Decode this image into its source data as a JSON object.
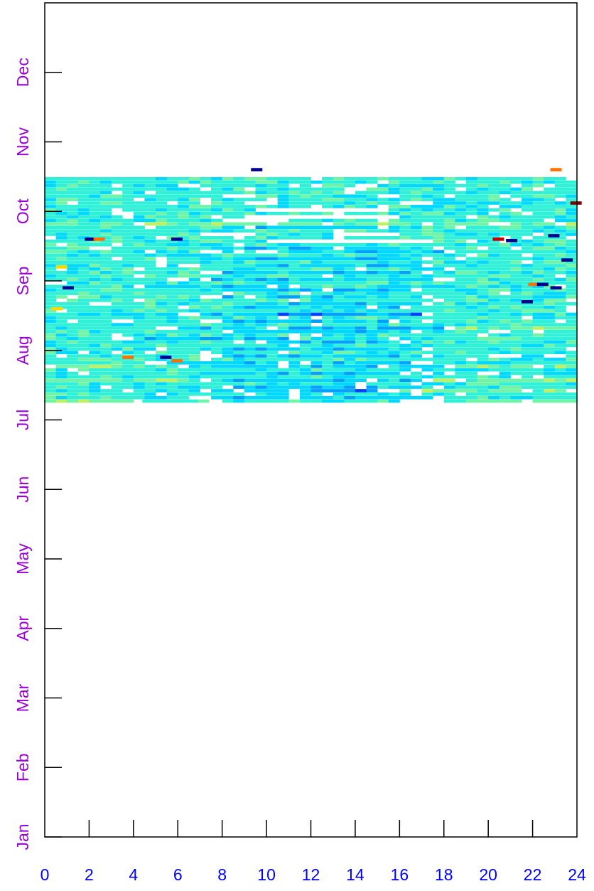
{
  "chart_data": {
    "type": "heatmap",
    "title": "",
    "xlabel": "",
    "ylabel": "",
    "xlim": [
      0,
      24
    ],
    "ylim": [
      0,
      12
    ],
    "grid": false,
    "legend": "none",
    "x_ticks": [
      "0",
      "2",
      "4",
      "6",
      "8",
      "10",
      "12",
      "14",
      "16",
      "18",
      "20",
      "22",
      "24"
    ],
    "y_ticks": [
      "Jan",
      "Feb",
      "Mar",
      "Apr",
      "May",
      "Jun",
      "Jul",
      "Aug",
      "Sep",
      "Oct",
      "Nov",
      "Dec"
    ],
    "x_tick_color": "#0000ff",
    "y_tick_color": "#9a00d6",
    "colormap": [
      "#00008f",
      "#0040ff",
      "#00a0ff",
      "#00d8ff",
      "#30f0d8",
      "#70f4a8",
      "#c0f060",
      "#ffd800",
      "#ff7000",
      "#c00000",
      "#7f0000"
    ],
    "x_resolution_hours": 0.5,
    "data_start_month": 6.25,
    "data_end_month": 9.5,
    "typical_level": 4,
    "rows": [
      {
        "month": 6.27,
        "segments": [
          [
            0,
            3.6,
            5
          ],
          [
            4.4,
            7.2,
            4
          ],
          [
            8,
            16,
            4
          ],
          [
            18,
            24,
            5
          ]
        ]
      },
      {
        "month": 6.32,
        "segments": [
          [
            0,
            6.5,
            4
          ],
          [
            7.5,
            17.5,
            3
          ],
          [
            18,
            24,
            4
          ]
        ]
      },
      {
        "month": 6.37,
        "segments": [
          [
            0,
            5,
            4
          ],
          [
            5.5,
            9,
            4
          ],
          [
            9.5,
            16.5,
            3
          ],
          [
            17,
            24,
            4
          ]
        ]
      },
      {
        "month": 6.42,
        "segments": [
          [
            0,
            7,
            4
          ],
          [
            7.5,
            11,
            3
          ],
          [
            11.5,
            15,
            2
          ],
          [
            16,
            24,
            5
          ]
        ]
      },
      {
        "month": 6.47,
        "segments": [
          [
            0,
            8,
            4
          ],
          [
            8.5,
            17.5,
            3
          ],
          [
            18,
            24,
            4
          ]
        ]
      },
      {
        "month": 6.52,
        "segments": [
          [
            0,
            24,
            4
          ]
        ]
      },
      {
        "month": 6.57,
        "segments": [
          [
            0,
            7,
            5
          ],
          [
            7.5,
            17,
            3
          ],
          [
            17.5,
            24,
            5
          ]
        ]
      },
      {
        "month": 6.62,
        "segments": [
          [
            0,
            24,
            4
          ]
        ]
      },
      {
        "month": 6.67,
        "segments": [
          [
            0,
            10,
            4
          ],
          [
            10,
            16,
            3
          ],
          [
            16.5,
            24,
            4
          ]
        ]
      },
      {
        "month": 6.72,
        "segments": [
          [
            0,
            24,
            4
          ]
        ]
      },
      {
        "month": 6.77,
        "segments": [
          [
            0,
            6,
            5
          ],
          [
            6.5,
            18,
            3
          ],
          [
            18.5,
            24,
            5
          ]
        ]
      },
      {
        "month": 6.82,
        "segments": [
          [
            0,
            4.5,
            4
          ],
          [
            5.5,
            16.5,
            3
          ],
          [
            17.5,
            24,
            4
          ]
        ]
      },
      {
        "month": 6.87,
        "segments": [
          [
            0,
            24,
            4
          ]
        ]
      },
      {
        "month": 6.92,
        "segments": [
          [
            0,
            7,
            4
          ],
          [
            8,
            17,
            3
          ],
          [
            17.5,
            24,
            4
          ]
        ]
      },
      {
        "month": 6.97,
        "segments": [
          [
            0,
            24,
            4
          ]
        ]
      },
      {
        "month": 7.02,
        "segments": [
          [
            0,
            5,
            4
          ],
          [
            5.5,
            8,
            4
          ],
          [
            8,
            17,
            3
          ],
          [
            17.5,
            24,
            4
          ]
        ]
      },
      {
        "month": 7.07,
        "segments": [
          [
            0,
            24,
            4
          ]
        ]
      },
      {
        "month": 7.12,
        "segments": [
          [
            0,
            9,
            4
          ],
          [
            9,
            16,
            3
          ],
          [
            16.5,
            24,
            4
          ]
        ]
      },
      {
        "month": 7.17,
        "segments": [
          [
            0,
            3,
            4
          ],
          [
            4,
            11,
            3
          ],
          [
            11.5,
            24,
            4
          ]
        ]
      },
      {
        "month": 7.22,
        "segments": [
          [
            0,
            24,
            4
          ]
        ]
      },
      {
        "month": 7.27,
        "segments": [
          [
            0,
            8,
            4
          ],
          [
            8,
            17,
            3
          ],
          [
            17,
            24,
            4
          ]
        ]
      },
      {
        "month": 7.32,
        "segments": [
          [
            0,
            5,
            4
          ],
          [
            6,
            18,
            3
          ],
          [
            18.5,
            24,
            5
          ]
        ]
      },
      {
        "month": 7.37,
        "segments": [
          [
            0,
            24,
            4
          ]
        ]
      },
      {
        "month": 7.42,
        "segments": [
          [
            0,
            7,
            4
          ],
          [
            8,
            17,
            3
          ],
          [
            17.5,
            24,
            4
          ]
        ]
      },
      {
        "month": 7.47,
        "segments": [
          [
            0,
            24,
            4
          ]
        ]
      },
      {
        "month": 7.52,
        "segments": [
          [
            0,
            6,
            4
          ],
          [
            7,
            10,
            3
          ],
          [
            10,
            17,
            2
          ],
          [
            17.5,
            24,
            4
          ]
        ]
      },
      {
        "month": 7.57,
        "segments": [
          [
            0,
            24,
            4
          ]
        ]
      },
      {
        "month": 7.62,
        "segments": [
          [
            0,
            8,
            4
          ],
          [
            8,
            16,
            3
          ],
          [
            16.5,
            24,
            4
          ]
        ]
      },
      {
        "month": 7.67,
        "segments": [
          [
            0,
            2,
            4
          ],
          [
            3,
            9,
            4
          ],
          [
            9,
            17,
            3
          ],
          [
            17.5,
            24,
            4
          ]
        ]
      },
      {
        "month": 7.72,
        "segments": [
          [
            0,
            24,
            4
          ]
        ]
      },
      {
        "month": 7.77,
        "segments": [
          [
            0,
            7,
            4
          ],
          [
            8,
            17,
            3
          ],
          [
            17.5,
            24,
            4
          ]
        ]
      },
      {
        "month": 7.82,
        "segments": [
          [
            0,
            24,
            4
          ]
        ]
      },
      {
        "month": 7.87,
        "segments": [
          [
            0,
            8,
            4
          ],
          [
            8,
            16.5,
            3
          ],
          [
            17,
            24,
            4
          ]
        ]
      },
      {
        "month": 7.92,
        "segments": [
          [
            0,
            4,
            4
          ],
          [
            4.5,
            10,
            3
          ],
          [
            10.5,
            24,
            4
          ]
        ]
      },
      {
        "month": 7.97,
        "segments": [
          [
            0,
            24,
            4
          ]
        ]
      },
      {
        "month": 8.02,
        "segments": [
          [
            0,
            6,
            4
          ],
          [
            6.5,
            18,
            3
          ],
          [
            18.5,
            24,
            4
          ]
        ]
      },
      {
        "month": 8.07,
        "segments": [
          [
            0,
            24,
            4
          ]
        ]
      },
      {
        "month": 8.12,
        "segments": [
          [
            0,
            7,
            4
          ],
          [
            8,
            17,
            3
          ],
          [
            17.5,
            24,
            4
          ]
        ]
      },
      {
        "month": 8.17,
        "segments": [
          [
            0,
            24,
            4
          ]
        ]
      },
      {
        "month": 8.22,
        "segments": [
          [
            0,
            5,
            4
          ],
          [
            5.5,
            9,
            4
          ],
          [
            9,
            17,
            3
          ],
          [
            17.5,
            24,
            4
          ]
        ]
      },
      {
        "month": 8.27,
        "segments": [
          [
            0,
            24,
            4
          ]
        ]
      },
      {
        "month": 8.32,
        "segments": [
          [
            0,
            8,
            4
          ],
          [
            8,
            17,
            3
          ],
          [
            17.5,
            24,
            4
          ]
        ]
      },
      {
        "month": 8.37,
        "segments": [
          [
            0,
            24,
            4
          ]
        ]
      },
      {
        "month": 8.42,
        "segments": [
          [
            0,
            7,
            4
          ],
          [
            8,
            18,
            3
          ],
          [
            18.5,
            24,
            4
          ]
        ]
      },
      {
        "month": 8.47,
        "segments": [
          [
            0,
            9,
            4
          ],
          [
            9,
            17.5,
            3
          ],
          [
            18,
            24,
            4
          ]
        ]
      },
      {
        "month": 8.52,
        "segments": [
          [
            0,
            24,
            4
          ]
        ]
      },
      {
        "month": 8.57,
        "segments": [
          [
            0,
            10,
            4
          ],
          [
            17.5,
            24,
            4
          ]
        ]
      },
      {
        "month": 8.62,
        "segments": [
          [
            0,
            24,
            4
          ]
        ]
      },
      {
        "month": 8.67,
        "segments": [
          [
            0,
            7.5,
            4
          ],
          [
            9,
            13,
            4
          ],
          [
            16,
            24,
            4
          ]
        ]
      },
      {
        "month": 8.72,
        "segments": [
          [
            0,
            24,
            4
          ]
        ]
      },
      {
        "month": 8.77,
        "segments": [
          [
            0,
            9,
            4
          ],
          [
            9.5,
            15,
            3
          ],
          [
            15.5,
            24,
            4
          ]
        ]
      },
      {
        "month": 8.82,
        "segments": [
          [
            0,
            24,
            5
          ]
        ]
      },
      {
        "month": 8.87,
        "segments": [
          [
            0,
            8,
            4
          ],
          [
            11,
            24,
            4
          ]
        ]
      },
      {
        "month": 8.92,
        "segments": [
          [
            0,
            9,
            4
          ],
          [
            16,
            24,
            4
          ]
        ]
      },
      {
        "month": 8.97,
        "segments": [
          [
            0,
            24,
            4
          ]
        ]
      },
      {
        "month": 9.02,
        "segments": [
          [
            0,
            9.5,
            4
          ],
          [
            15.5,
            24,
            4
          ]
        ]
      },
      {
        "month": 9.07,
        "segments": [
          [
            0,
            24,
            4
          ]
        ]
      },
      {
        "month": 9.12,
        "segments": [
          [
            0,
            9,
            4
          ],
          [
            10.5,
            16,
            4
          ],
          [
            17.5,
            24,
            4
          ]
        ]
      },
      {
        "month": 9.17,
        "segments": [
          [
            0,
            24,
            4
          ]
        ]
      },
      {
        "month": 9.22,
        "segments": [
          [
            0,
            8,
            4
          ],
          [
            9,
            15,
            4
          ],
          [
            16,
            24,
            4
          ]
        ]
      },
      {
        "month": 9.27,
        "segments": [
          [
            0,
            24,
            4
          ]
        ]
      },
      {
        "month": 9.32,
        "segments": [
          [
            0,
            9,
            4
          ],
          [
            9.5,
            14,
            4
          ],
          [
            14.5,
            24,
            4
          ]
        ]
      },
      {
        "month": 9.37,
        "segments": [
          [
            0,
            6,
            4
          ],
          [
            7,
            14,
            4
          ],
          [
            15,
            24,
            4
          ]
        ]
      },
      {
        "month": 9.42,
        "segments": [
          [
            0,
            24,
            4
          ]
        ]
      },
      {
        "month": 9.47,
        "segments": [
          [
            0,
            12,
            4
          ],
          [
            12.5,
            24,
            4
          ]
        ]
      }
    ],
    "hotspots": [
      {
        "x": 0.5,
        "month": 8.2,
        "level": 7
      },
      {
        "x": 0.8,
        "month": 7.9,
        "level": 0
      },
      {
        "x": 1.8,
        "month": 8.6,
        "level": 0
      },
      {
        "x": 2.2,
        "month": 8.6,
        "level": 8
      },
      {
        "x": 3.5,
        "month": 6.9,
        "level": 8
      },
      {
        "x": 5.2,
        "month": 6.9,
        "level": 0
      },
      {
        "x": 5.7,
        "month": 6.85,
        "level": 8
      },
      {
        "x": 5.7,
        "month": 8.6,
        "level": 0
      },
      {
        "x": 0.3,
        "month": 7.6,
        "level": 7
      },
      {
        "x": 20.2,
        "month": 8.6,
        "level": 9
      },
      {
        "x": 20.8,
        "month": 8.58,
        "level": 0
      },
      {
        "x": 22.7,
        "month": 8.65,
        "level": 0
      },
      {
        "x": 21.8,
        "month": 7.95,
        "level": 8
      },
      {
        "x": 22.2,
        "month": 7.95,
        "level": 0
      },
      {
        "x": 22.8,
        "month": 7.9,
        "level": 0
      },
      {
        "x": 23.7,
        "month": 9.12,
        "level": 10
      },
      {
        "x": 22.8,
        "month": 9.6,
        "level": 8
      },
      {
        "x": 9.3,
        "month": 9.6,
        "level": 0
      },
      {
        "x": 21.5,
        "month": 7.7,
        "level": 0
      },
      {
        "x": 23.3,
        "month": 8.3,
        "level": 0
      }
    ]
  }
}
